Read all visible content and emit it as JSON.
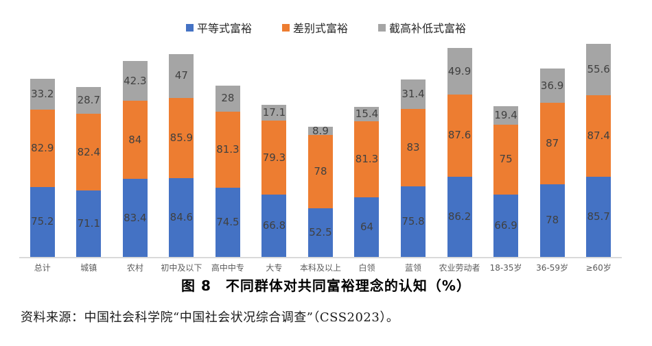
{
  "chart_data": {
    "type": "bar",
    "stacked": true,
    "title": "图 8　不同群体对共同富裕理念的认知（%）",
    "xlabel": "",
    "ylabel": "",
    "ylim": [
      0,
      235
    ],
    "grid": false,
    "legend_position": "top",
    "data_labels": true,
    "categories": [
      "总计",
      "城镇",
      "农村",
      "初中及以下",
      "高中中专",
      "大专",
      "本科及以上",
      "白领",
      "蓝领",
      "农业劳动者",
      "18-35岁",
      "36-59岁",
      "≥60岁"
    ],
    "series": [
      {
        "name": "平等式富裕",
        "color": "#4472C4",
        "values": [
          75.2,
          71.1,
          83.4,
          84.6,
          74.5,
          66.8,
          52.5,
          64,
          75.8,
          86.2,
          66.9,
          78,
          85.7
        ]
      },
      {
        "name": "差别式富裕",
        "color": "#ED7D31",
        "values": [
          82.9,
          82.4,
          84,
          85.9,
          81.3,
          79.3,
          78,
          81.3,
          83,
          87.6,
          75,
          87,
          87.4
        ]
      },
      {
        "name": "截高补低式富裕",
        "color": "#A5A5A5",
        "values": [
          33.2,
          28.7,
          42.3,
          47,
          28,
          17.1,
          8.9,
          15.4,
          31.4,
          49.9,
          19.4,
          36.9,
          55.6
        ]
      }
    ],
    "style": {
      "axis_line_color": "#D9D9D9",
      "data_label_color": "#404040",
      "category_label_color": "#595959",
      "title_color": "#000000",
      "source_color": "#1A1A1A"
    }
  },
  "source_note": "资料来源：中国社会科学院“中国社会状况综合调查”（CSS2023）。"
}
